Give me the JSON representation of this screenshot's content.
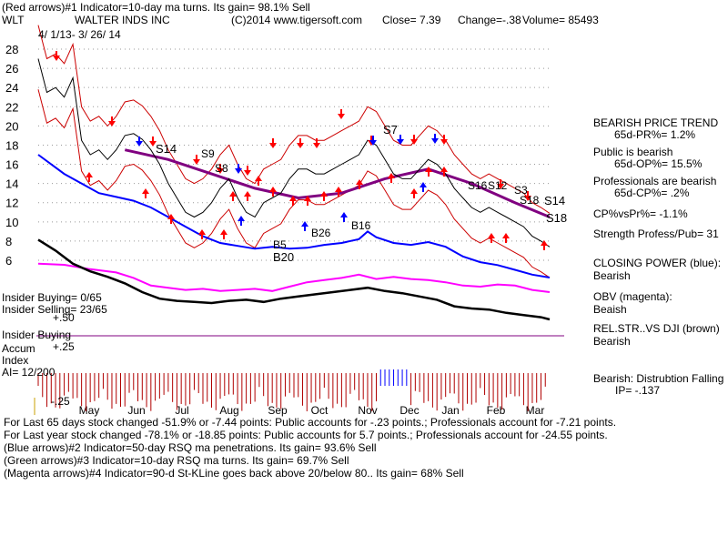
{
  "header": {
    "line1": "(Red arrows)#1 Indicator=10-day ma turns. Its gain= 98.1% Sell",
    "ticker": "WLT",
    "company": "WALTER INDS INC",
    "copyright": "(C)2014 www.tigersoft.com",
    "close": "Close=  7.39",
    "change": "Change=-.38",
    "volume": "Volume= 85493",
    "date_range": "4/ 1/13-  3/ 26/ 14"
  },
  "chart_data": {
    "type": "line",
    "y_ticks": [
      "28",
      "26",
      "24",
      "22",
      "20",
      "18",
      "16",
      "14",
      "12",
      "10",
      "8",
      "6"
    ],
    "x_ticks": [
      "May",
      "Jun",
      "Jul",
      "Aug",
      "Sep",
      "Oct",
      "Nov",
      "Dec",
      "Jan",
      "Feb",
      "Mar"
    ],
    "ylim": [
      6,
      28
    ],
    "price_points": [
      [
        0,
        27
      ],
      [
        2,
        23.5
      ],
      [
        4,
        24
      ],
      [
        6,
        23
      ],
      [
        8,
        25
      ],
      [
        10,
        18.5
      ],
      [
        12,
        17
      ],
      [
        14,
        17.5
      ],
      [
        16,
        16.5
      ],
      [
        18,
        17.5
      ],
      [
        20,
        19
      ],
      [
        22,
        19.2
      ],
      [
        24,
        18.6
      ],
      [
        26,
        17.5
      ],
      [
        28,
        16
      ],
      [
        30,
        14
      ],
      [
        32,
        12.5
      ],
      [
        34,
        11
      ],
      [
        36,
        10.5
      ],
      [
        38,
        11
      ],
      [
        40,
        12
      ],
      [
        42,
        13.5
      ],
      [
        44,
        14.5
      ],
      [
        46,
        12.5
      ],
      [
        48,
        11
      ],
      [
        50,
        10.5
      ],
      [
        52,
        12
      ],
      [
        54,
        12.5
      ],
      [
        56,
        13
      ],
      [
        58,
        14.5
      ],
      [
        60,
        15.5
      ],
      [
        62,
        15.5
      ],
      [
        64,
        15
      ],
      [
        66,
        15
      ],
      [
        68,
        15.5
      ],
      [
        70,
        16
      ],
      [
        72,
        16.5
      ],
      [
        74,
        17
      ],
      [
        76,
        18.5
      ],
      [
        78,
        18
      ],
      [
        80,
        16.5
      ],
      [
        82,
        15
      ],
      [
        84,
        14.5
      ],
      [
        86,
        14.5
      ],
      [
        88,
        15.5
      ],
      [
        90,
        16.5
      ],
      [
        92,
        16
      ],
      [
        94,
        15
      ],
      [
        96,
        13.5
      ],
      [
        98,
        12.5
      ],
      [
        100,
        11.5
      ],
      [
        102,
        11
      ],
      [
        104,
        11.5
      ],
      [
        106,
        11
      ],
      [
        108,
        10.5
      ],
      [
        110,
        10
      ],
      [
        112,
        9.5
      ],
      [
        114,
        8.5
      ],
      [
        116,
        8
      ],
      [
        118,
        7.39
      ]
    ],
    "closing_power_points": [
      [
        0,
        17
      ],
      [
        6,
        15
      ],
      [
        10,
        14
      ],
      [
        14,
        13
      ],
      [
        18,
        12.6
      ],
      [
        22,
        12.2
      ],
      [
        26,
        11.5
      ],
      [
        30,
        10.5
      ],
      [
        34,
        9.5
      ],
      [
        38,
        8.5
      ],
      [
        42,
        7.8
      ],
      [
        46,
        7.5
      ],
      [
        50,
        7.2
      ],
      [
        54,
        7.4
      ],
      [
        58,
        7.2
      ],
      [
        62,
        7.3
      ],
      [
        66,
        7.6
      ],
      [
        70,
        7.8
      ],
      [
        74,
        8.2
      ],
      [
        76,
        9.0
      ],
      [
        78,
        8.4
      ],
      [
        82,
        7.8
      ],
      [
        86,
        7.6
      ],
      [
        90,
        7.9
      ],
      [
        94,
        7.4
      ],
      [
        98,
        6.4
      ],
      [
        102,
        5.8
      ],
      [
        106,
        5.5
      ],
      [
        110,
        5.0
      ],
      [
        114,
        4.5
      ],
      [
        118,
        4.2
      ]
    ],
    "obv_points": [
      [
        0,
        5.6
      ],
      [
        6,
        5.5
      ],
      [
        12,
        5.1
      ],
      [
        18,
        4.8
      ],
      [
        22,
        4.3
      ],
      [
        26,
        3.6
      ],
      [
        30,
        3.4
      ],
      [
        34,
        3.2
      ],
      [
        38,
        3.3
      ],
      [
        42,
        3.1
      ],
      [
        46,
        3.2
      ],
      [
        50,
        3.3
      ],
      [
        54,
        3.1
      ],
      [
        58,
        3.5
      ],
      [
        62,
        3.9
      ],
      [
        66,
        4.1
      ],
      [
        70,
        4.3
      ],
      [
        74,
        4.6
      ],
      [
        78,
        4.2
      ],
      [
        82,
        4.4
      ],
      [
        86,
        4.2
      ],
      [
        90,
        4.1
      ],
      [
        94,
        3.9
      ],
      [
        98,
        3.6
      ],
      [
        102,
        3.5
      ],
      [
        106,
        3.7
      ],
      [
        110,
        3.6
      ],
      [
        114,
        3.2
      ],
      [
        118,
        3.0
      ]
    ],
    "relstr_points": [
      [
        0,
        7.8
      ],
      [
        4,
        6.8
      ],
      [
        8,
        5.6
      ],
      [
        12,
        4.9
      ],
      [
        16,
        4.4
      ],
      [
        20,
        3.8
      ],
      [
        24,
        3.0
      ],
      [
        28,
        2.4
      ],
      [
        32,
        2.2
      ],
      [
        36,
        2.1
      ],
      [
        40,
        2.0
      ],
      [
        44,
        2.2
      ],
      [
        48,
        2.3
      ],
      [
        52,
        2.1
      ],
      [
        56,
        2.4
      ],
      [
        60,
        2.6
      ],
      [
        64,
        2.8
      ],
      [
        68,
        3.0
      ],
      [
        72,
        3.2
      ],
      [
        76,
        3.4
      ],
      [
        80,
        3.1
      ],
      [
        84,
        2.9
      ],
      [
        88,
        2.6
      ],
      [
        92,
        2.3
      ],
      [
        96,
        1.7
      ],
      [
        100,
        1.5
      ],
      [
        104,
        1.4
      ],
      [
        108,
        1.1
      ],
      [
        112,
        0.9
      ],
      [
        116,
        0.7
      ],
      [
        118,
        0.5
      ]
    ],
    "ma_points": [
      [
        20,
        17.5
      ],
      [
        30,
        16.5
      ],
      [
        40,
        15
      ],
      [
        50,
        13.5
      ],
      [
        60,
        12.5
      ],
      [
        70,
        13
      ],
      [
        80,
        14.5
      ],
      [
        90,
        15.5
      ],
      [
        100,
        14
      ],
      [
        110,
        12
      ],
      [
        118,
        10.5
      ]
    ]
  },
  "signals": {
    "s14a": "S14",
    "s9": "S9",
    "s8": "S8",
    "s7": "S7",
    "b26": "B26",
    "b16": "B16",
    "b5": "B5",
    "b20": "B20",
    "s16": "S16",
    "s12": "S12",
    "s3": "S3",
    "s18a": "S18",
    "s14b": "S14",
    "s18b": "S18"
  },
  "insider": {
    "buying": "Insider Buying= 0/65",
    "selling": "Insider Selling= 23/65",
    "plus50": "+.50",
    "buying_label": "Insider Buying",
    "accum": "Accum",
    "plus25": "+.25",
    "index": "Index",
    "ai": "AI= 12/200",
    "minus25": "-.25"
  },
  "right_panel": {
    "trend_title": "BEARISH PRICE TREND",
    "pr": "65d-PR%= 1.2%",
    "public_title": "Public is bearish",
    "op": "65d-OP%= 15.5%",
    "prof_title": "Professionals are bearish",
    "cp": "65d-CP%= .2%",
    "cpvspr": "CP%vsPr%= -1.1%",
    "strength": "Strength Profess/Pub= 31",
    "closing_title": "CLOSING POWER (blue):",
    "closing_value": "Bearish",
    "obv_title": "OBV (magenta):",
    "obv_value": "Beaish",
    "relstr_title": "REL.STR..VS DJI (brown)",
    "relstr_value": "Bearish",
    "dist": "Bearish:  Distrubtion Falling",
    "ip": "IP= -.137"
  },
  "footer": {
    "line1": "For Last 65 days stock changed -51.9% or -7.44 points:  Public accounts for -.23 points.;  Professionals account for -7.21 points.",
    "line2": "For Last year stock changed -78.1% or -18.85 points:  Public accounts for  5.7 points.;  Professionals account for -24.55 points.",
    "line3": "(Blue arrows)#2 Indicator=50-day RSQ ma penetrations. Its gain= 93.6% Sell",
    "line4": "(Green arrows)#3 Indicator=10-day RSQ ma turns. Its gain= 69.7% Sell",
    "line5": "(Magenta arrows)#4 Indicator=90-d St-KLine goes back above 20/below 80.. Its gain= 68% Sell"
  },
  "colors": {
    "price": "#000000",
    "band": "#cc0000",
    "ma": "#800080",
    "closing_power": "#0000ff",
    "obv": "#ff00ff",
    "relstr": "#000000",
    "up_arrow": "#ff0000",
    "down_arrow": "#ff0000",
    "blue_arrow": "#0000ff",
    "accum": "#aa0000"
  }
}
